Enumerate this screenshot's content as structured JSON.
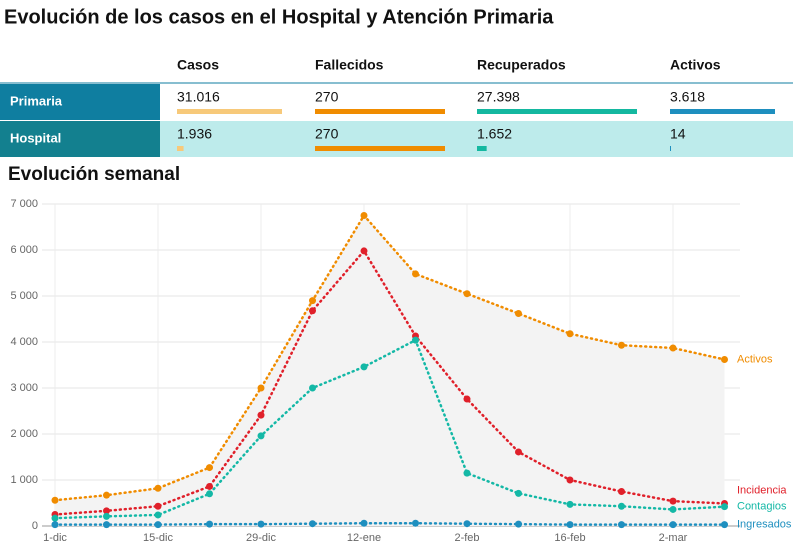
{
  "header": {
    "title": "Evolución de los casos en el Hospital y Atención Primaria"
  },
  "table": {
    "headers": [
      "Casos",
      "Fallecidos",
      "Recuperados",
      "Activos"
    ],
    "colors": [
      "#f7c97a",
      "#f08c00",
      "#14b8a0",
      "#1e8fbf"
    ],
    "rows": [
      {
        "label": "Primaria",
        "cells": [
          {
            "value": 31016,
            "label": "31.016"
          },
          270,
          {
            "value": 27398,
            "label": "27.398"
          },
          {
            "value": 3618,
            "label": "3.618"
          }
        ]
      },
      {
        "label": "Hospital",
        "cells": [
          {
            "value": 1936,
            "label": "1.936"
          },
          270,
          {
            "value": 1652,
            "label": "1.652"
          },
          14
        ]
      }
    ]
  },
  "chart_data": {
    "type": "line",
    "title": "Evolución semanal",
    "categories": [
      "1-dic",
      null,
      "15-dic",
      null,
      "29-dic",
      null,
      "12-ene",
      null,
      "2-feb",
      null,
      "16-feb",
      null,
      "2-mar",
      null
    ],
    "ylim": [
      0,
      7000
    ],
    "yticks": [
      0,
      {
        "value": 1000,
        "label": "1 000"
      },
      {
        "value": 2000,
        "label": "2 000"
      },
      {
        "value": 3000,
        "label": "3 000"
      },
      {
        "value": 4000,
        "label": "4 000"
      },
      {
        "value": 5000,
        "label": "5 000"
      },
      {
        "value": 6000,
        "label": "6 000"
      },
      {
        "value": 7000,
        "label": "7 000"
      }
    ],
    "grid": true,
    "series": [
      {
        "name": "Activos",
        "color": "#f08c00",
        "values": [
          560,
          670,
          820,
          1270,
          3000,
          4900,
          6750,
          5480,
          5050,
          4620,
          4180,
          3930,
          3870,
          3620
        ]
      },
      {
        "name": "Incidencia",
        "color": "#e0202a",
        "values": [
          250,
          330,
          430,
          860,
          2410,
          4680,
          5980,
          4130,
          2760,
          1610,
          1000,
          750,
          540,
          490
        ]
      },
      {
        "name": "Contagios",
        "color": "#14b8a6",
        "values": [
          170,
          210,
          240,
          700,
          1960,
          3000,
          3460,
          4040,
          1150,
          710,
          470,
          430,
          360,
          420
        ]
      },
      {
        "name": "Ingresados",
        "color": "#1e8fbf",
        "values": [
          30,
          30,
          30,
          40,
          40,
          50,
          60,
          60,
          50,
          40,
          30,
          30,
          30,
          30
        ]
      }
    ]
  }
}
